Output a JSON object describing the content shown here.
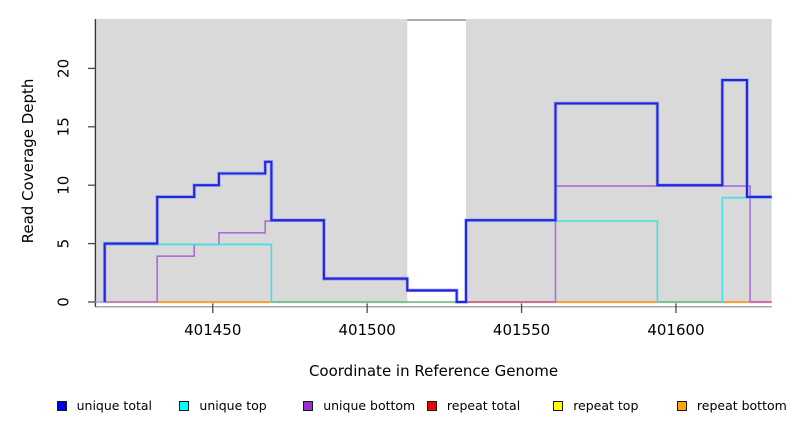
{
  "chart_data": {
    "type": "line",
    "subtype": "step-coverage",
    "title": "",
    "xlabel": "Coordinate in Reference Genome",
    "ylabel": "Read Coverage Depth",
    "xlim": [
      401412,
      401631
    ],
    "ylim": [
      0,
      24.2
    ],
    "xticks": [
      401450,
      401500,
      401550,
      401600
    ],
    "yticks": [
      0,
      5,
      10,
      15,
      20
    ],
    "grid": "off",
    "legend_position": "bottom",
    "plot_bg_color": "#d9d9d9",
    "masked_region": {
      "from": 401513,
      "to": 401532,
      "fill": "#ffffff",
      "border": "#8f8f8f"
    },
    "series": [
      {
        "name": "unique total",
        "color": "#2525dd",
        "halo": "rgba(100,130,250,0.45)",
        "width": 2.1,
        "skip_zero": false,
        "points": [
          [
            401415,
            5
          ],
          [
            401432,
            9
          ],
          [
            401444,
            10
          ],
          [
            401452,
            11
          ],
          [
            401467,
            12
          ],
          [
            401469,
            7
          ],
          [
            401486,
            2
          ],
          [
            401513,
            1
          ],
          [
            401529,
            0
          ],
          [
            401532,
            7
          ],
          [
            401561,
            17
          ],
          [
            401594,
            10
          ],
          [
            401615,
            19
          ],
          [
            401623,
            9
          ],
          [
            401631,
            9
          ]
        ]
      },
      {
        "name": "unique top",
        "color": "#3fe0e6",
        "halo": null,
        "width": 1.6,
        "skip_zero": true,
        "points": [
          [
            401415,
            5
          ],
          [
            401469,
            0
          ],
          [
            401532,
            7
          ],
          [
            401594,
            0
          ],
          [
            401615,
            9
          ],
          [
            401631,
            9
          ]
        ]
      },
      {
        "name": "unique bottom",
        "color": "#a86fd8",
        "halo": null,
        "width": 1.6,
        "skip_zero": true,
        "points": [
          [
            401432,
            4
          ],
          [
            401444,
            5
          ],
          [
            401452,
            6
          ],
          [
            401467,
            7
          ],
          [
            401486,
            2
          ],
          [
            401513,
            1
          ],
          [
            401529,
            0
          ],
          [
            401561,
            10
          ],
          [
            401624,
            0
          ],
          [
            401631,
            0
          ]
        ]
      },
      {
        "name": "repeat total",
        "color": "#ee0000",
        "halo": null,
        "width": 1.5,
        "skip_zero": true,
        "points": []
      },
      {
        "name": "repeat top",
        "color": "#f2f200",
        "halo": null,
        "width": 1.5,
        "skip_zero": true,
        "points": []
      },
      {
        "name": "repeat bottom",
        "color": "#ff9100",
        "halo": null,
        "width": 1.5,
        "skip_zero": true,
        "points": []
      }
    ],
    "baseline_segments": [
      {
        "from": 401412,
        "to": 401415,
        "color": "#b3a6ea"
      },
      {
        "from": 401415,
        "to": 401432,
        "color": "#c7609e"
      },
      {
        "from": 401432,
        "to": 401469,
        "color": "#ff9100"
      },
      {
        "from": 401469,
        "to": 401529,
        "color": "#63b77e"
      },
      {
        "from": 401532,
        "to": 401561,
        "color": "#cd4b72"
      },
      {
        "from": 401561,
        "to": 401594,
        "color": "#ff9100"
      },
      {
        "from": 401594,
        "to": 401615,
        "color": "#63b77e"
      },
      {
        "from": 401615,
        "to": 401624,
        "color": "#ff9100"
      },
      {
        "from": 401624,
        "to": 401631,
        "color": "#d6449a"
      }
    ]
  },
  "legend": {
    "items": [
      {
        "label": "unique total",
        "fill": "#0000e6",
        "border": "#1a1a1a"
      },
      {
        "label": "unique top",
        "fill": "#00ffff",
        "border": "#1a1a1a"
      },
      {
        "label": "unique bottom",
        "fill": "#9932cc",
        "border": "#1a1a1a"
      },
      {
        "label": "repeat total",
        "fill": "#f00000",
        "border": "#1a1a1a"
      },
      {
        "label": "repeat top",
        "fill": "#ffff00",
        "border": "#1a1a1a"
      },
      {
        "label": "repeat bottom",
        "fill": "#ffa500",
        "border": "#1a1a1a"
      }
    ]
  }
}
